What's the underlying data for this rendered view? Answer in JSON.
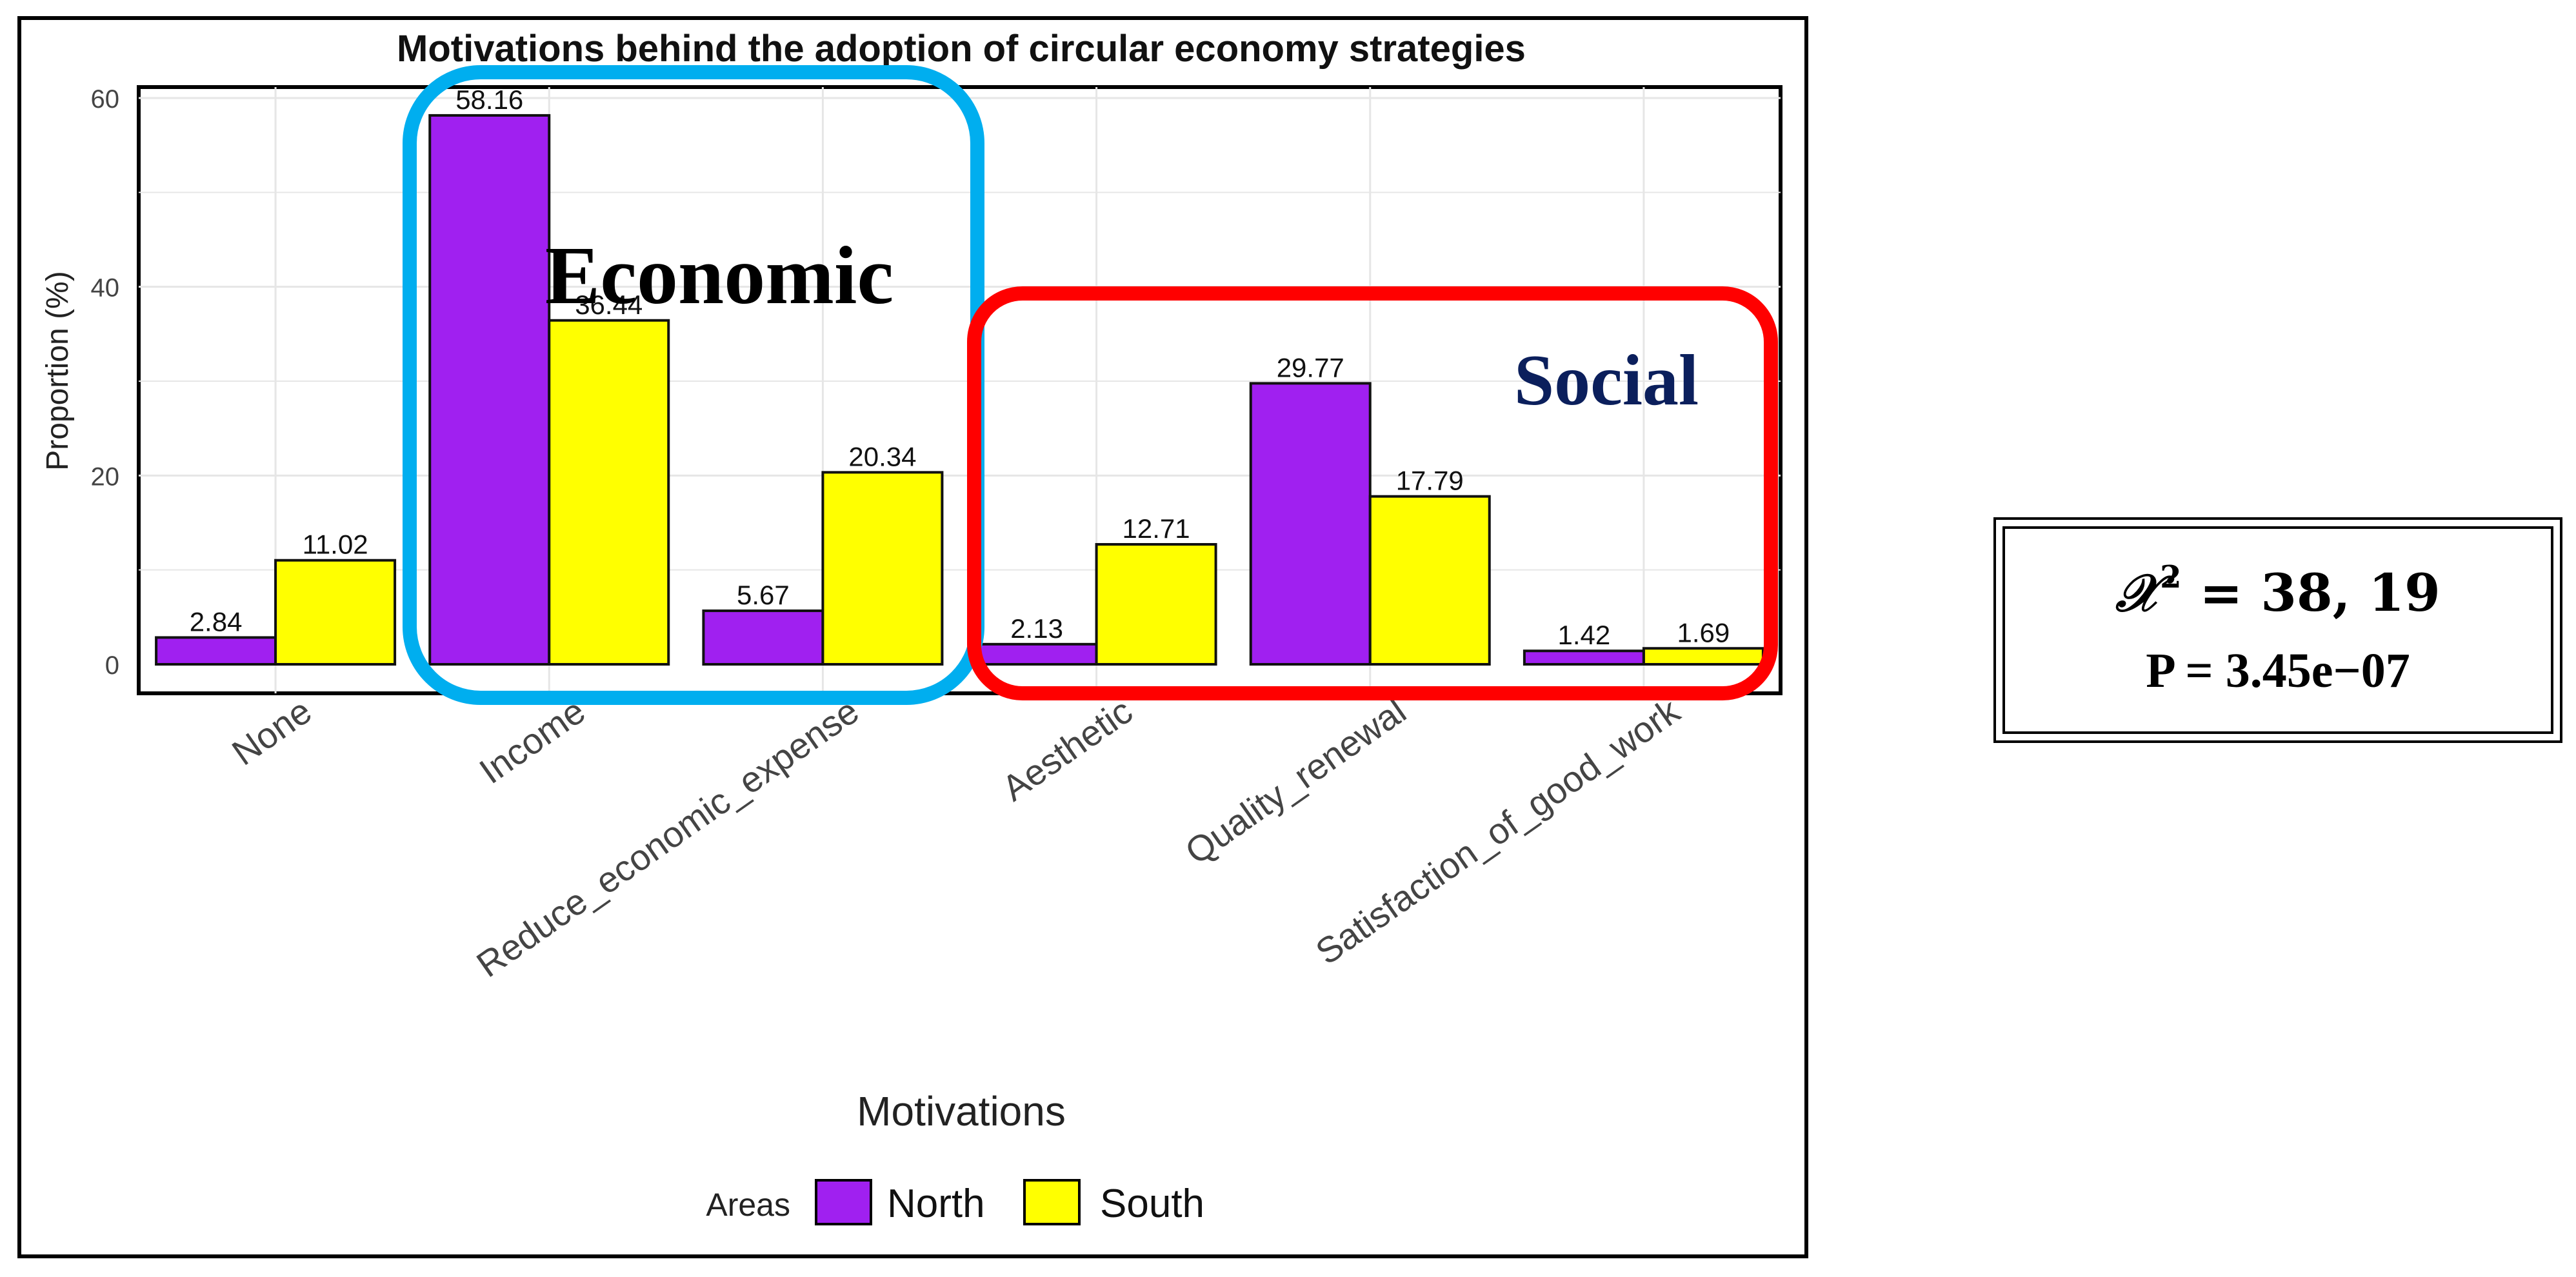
{
  "chart_data": {
    "type": "bar",
    "title": "Motivations behind the adoption of circular economy strategies",
    "xlabel": "Motivations",
    "ylabel": "Proportion (%)",
    "ylim": [
      0,
      62
    ],
    "yticks": [
      0,
      20,
      40,
      60
    ],
    "grid": true,
    "categories": [
      "None",
      "Income",
      "Reduce_economic_expense",
      "Aesthetic",
      "Quality_renewal",
      "Satisfaction_of_good_work"
    ],
    "series": [
      {
        "name": "North",
        "color": "#a020f0",
        "values": [
          2.84,
          58.16,
          5.67,
          2.13,
          29.77,
          1.42
        ]
      },
      {
        "name": "South",
        "color": "#ffff00",
        "values": [
          11.02,
          36.44,
          20.34,
          12.71,
          17.79,
          1.69
        ]
      }
    ],
    "data_labels": {
      "North": [
        "2.84",
        "58.16",
        "5.67",
        "2.13",
        "29.77",
        "1.42"
      ],
      "South": [
        "11.02",
        "36.44",
        "20.34",
        "12.71",
        "17.79",
        "1.69"
      ]
    },
    "legend": {
      "title": "Areas",
      "placement": "bottom"
    },
    "annotations": [
      {
        "label": "Economic",
        "color": "#00aeef",
        "text_color": "#000000",
        "categories": [
          "Income",
          "Reduce_economic_expense"
        ]
      },
      {
        "label": "Social",
        "color": "#ff0000",
        "text_color": "#0b1f5c",
        "categories": [
          "Aesthetic",
          "Quality_renewal",
          "Satisfaction_of_good_work"
        ]
      }
    ]
  },
  "stats": {
    "chi_symbol": "𝒳",
    "chi_exponent": "2",
    "chi_value": " = 38, 19",
    "p_value": "P = 3.45e−07"
  }
}
